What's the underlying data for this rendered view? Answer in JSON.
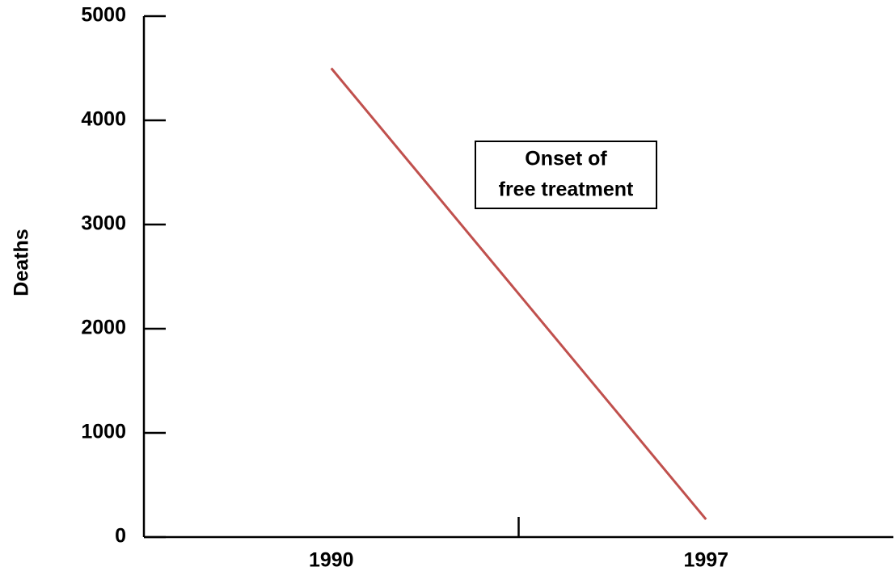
{
  "chart_data": {
    "type": "line",
    "y_label": "Deaths",
    "x": [
      1990,
      1997
    ],
    "series": [
      {
        "name": "Deaths",
        "color": "#c0504d",
        "values": [
          4500,
          170
        ]
      }
    ],
    "xlim": [
      1986.5,
      2000.5
    ],
    "xticks": [
      1990,
      1997
    ],
    "minor_xticks": [
      1993.5
    ],
    "ylim": [
      0,
      5000
    ],
    "yticks": [
      0,
      1000,
      2000,
      3000,
      4000,
      5000
    ],
    "annotation": [
      "Onset of",
      "free treatment"
    ]
  }
}
